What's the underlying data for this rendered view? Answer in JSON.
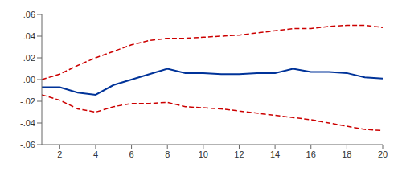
{
  "chart_data": {
    "type": "line",
    "x": [
      1,
      2,
      3,
      4,
      5,
      6,
      7,
      8,
      9,
      10,
      11,
      12,
      13,
      14,
      15,
      16,
      17,
      18,
      19,
      20
    ],
    "series": [
      {
        "color": "#cc0000",
        "line_style": "dashed",
        "values": [
          0.0,
          0.005,
          0.013,
          0.02,
          0.026,
          0.032,
          0.036,
          0.038,
          0.038,
          0.039,
          0.04,
          0.041,
          0.043,
          0.045,
          0.047,
          0.047,
          0.049,
          0.05,
          0.05,
          0.048
        ]
      },
      {
        "color": "#cc0000",
        "line_style": "dashed",
        "values": [
          -0.014,
          -0.019,
          -0.027,
          -0.03,
          -0.025,
          -0.022,
          -0.022,
          -0.021,
          -0.025,
          -0.026,
          -0.027,
          -0.029,
          -0.031,
          -0.033,
          -0.035,
          -0.037,
          -0.04,
          -0.043,
          -0.046,
          -0.047
        ]
      },
      {
        "color": "#003399",
        "line_style": "solid",
        "values": [
          -0.007,
          -0.007,
          -0.012,
          -0.014,
          -0.005,
          0.0,
          0.005,
          0.01,
          0.006,
          0.006,
          0.005,
          0.005,
          0.006,
          0.006,
          0.01,
          0.007,
          0.007,
          0.006,
          0.002,
          0.001
        ]
      }
    ],
    "xlim": [
      1,
      20
    ],
    "xticks": [
      2,
      4,
      6,
      8,
      10,
      12,
      14,
      16,
      18,
      20
    ],
    "ylim": [
      -0.06,
      0.06
    ],
    "yticks": [
      {
        "value": -0.06,
        "label": "-.06"
      },
      {
        "value": -0.04,
        "label": "-.04"
      },
      {
        "value": -0.02,
        "label": "-.02"
      },
      {
        "value": 0,
        "label": ".00"
      },
      {
        "value": 0.02,
        "label": ".02"
      },
      {
        "value": 0.04,
        "label": ".04"
      },
      {
        "value": 0.06,
        "label": ".06"
      }
    ],
    "grid": false
  }
}
